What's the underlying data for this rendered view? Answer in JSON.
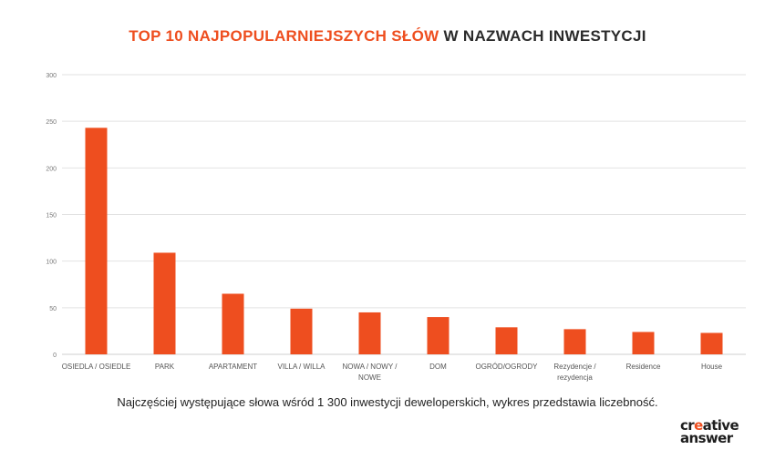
{
  "title": {
    "highlight": "TOP 10 NAJPOPULARNIEJSZYCH SŁÓW",
    "rest": "W NAZWACH INWESTYCJI"
  },
  "caption": "Najczęściej występujące słowa wśród 1 300 inwestycji deweloperskich, wykres przedstawia liczebność.",
  "logo": {
    "line1_pre": "cr",
    "line1_accent": "e",
    "line1_post": "ative",
    "line2": "answer"
  },
  "colors": {
    "accent": "#ee4e1f",
    "bar": "#ee4e1f",
    "grid": "#e2e2e2",
    "text": "#2b2b2b"
  },
  "chart_data": {
    "type": "bar",
    "categories": [
      [
        "OSIEDLA / OSIEDLE"
      ],
      [
        "PARK"
      ],
      [
        "APARTAMENT"
      ],
      [
        "VILLA / WILLA"
      ],
      [
        "NOWA / NOWY /",
        "NOWE"
      ],
      [
        "DOM"
      ],
      [
        "OGRÓD/OGRODY"
      ],
      [
        "Rezydencje /",
        "rezydencja"
      ],
      [
        "Residence"
      ],
      [
        "House"
      ]
    ],
    "values": [
      243,
      109,
      65,
      49,
      45,
      40,
      29,
      27,
      24,
      23
    ],
    "yticks": [
      "0",
      "50",
      "100",
      "150",
      "200",
      "250",
      "300"
    ],
    "ylim": [
      0,
      300
    ],
    "grid": true,
    "legend": "none"
  }
}
